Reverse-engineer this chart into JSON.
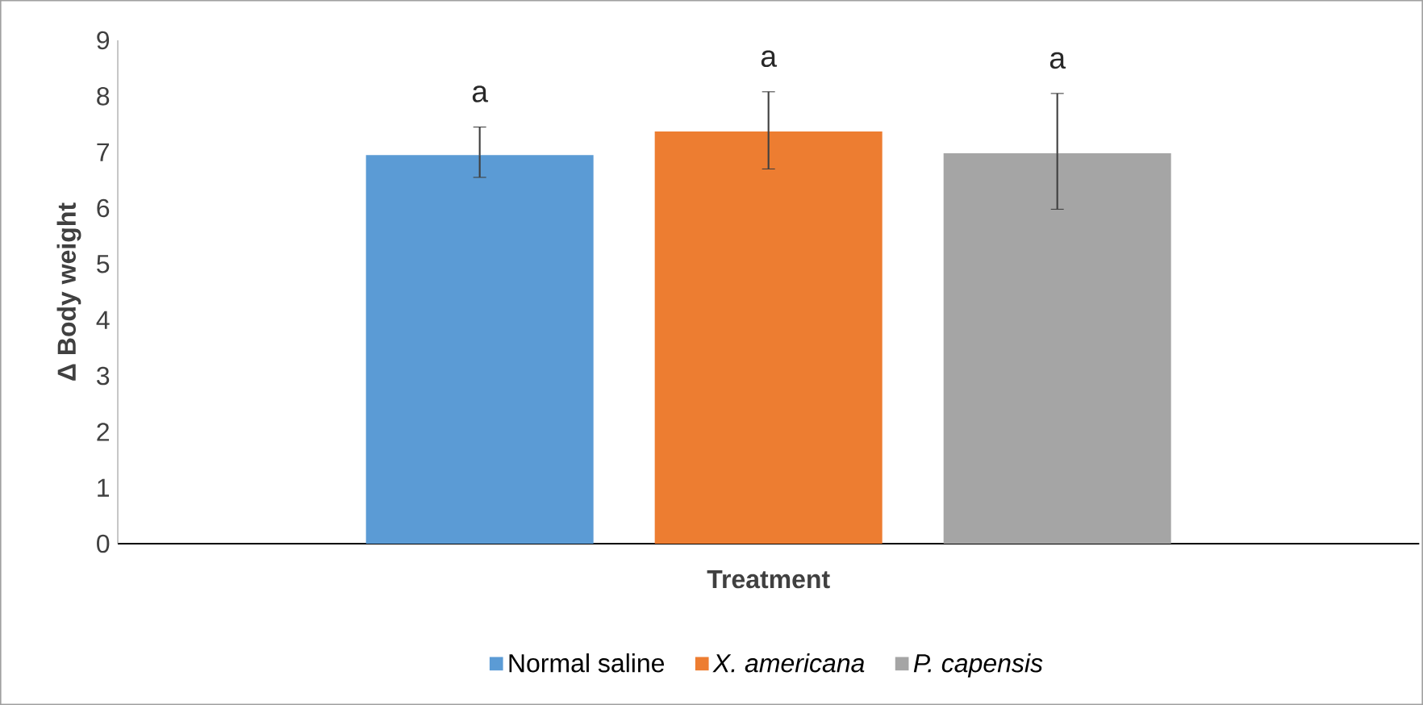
{
  "chart_data": {
    "type": "bar",
    "xlabel": "Treatment",
    "ylabel": "Δ Body weight",
    "categories": [
      null
    ],
    "series": [
      {
        "name": "Normal saline",
        "color": "#5b9bd5",
        "values": [
          6.95
        ],
        "errors": [
          [
            6.55,
            7.45
          ]
        ]
      },
      {
        "name": "*X. americana*",
        "color": "#ed7d31",
        "values": [
          7.37
        ],
        "errors": [
          [
            6.7,
            8.08
          ]
        ]
      },
      {
        "name": "*P. capensis*",
        "color": "#a5a5a5",
        "values": [
          6.98
        ],
        "errors": [
          [
            5.98,
            8.05
          ]
        ]
      }
    ],
    "annotations": [
      "a",
      "a",
      "a"
    ],
    "ylim": [
      0,
      9
    ],
    "yticks": [
      0,
      1,
      2,
      3,
      4,
      5,
      6,
      7,
      8,
      9
    ],
    "grid": false,
    "legend": "bottom"
  }
}
